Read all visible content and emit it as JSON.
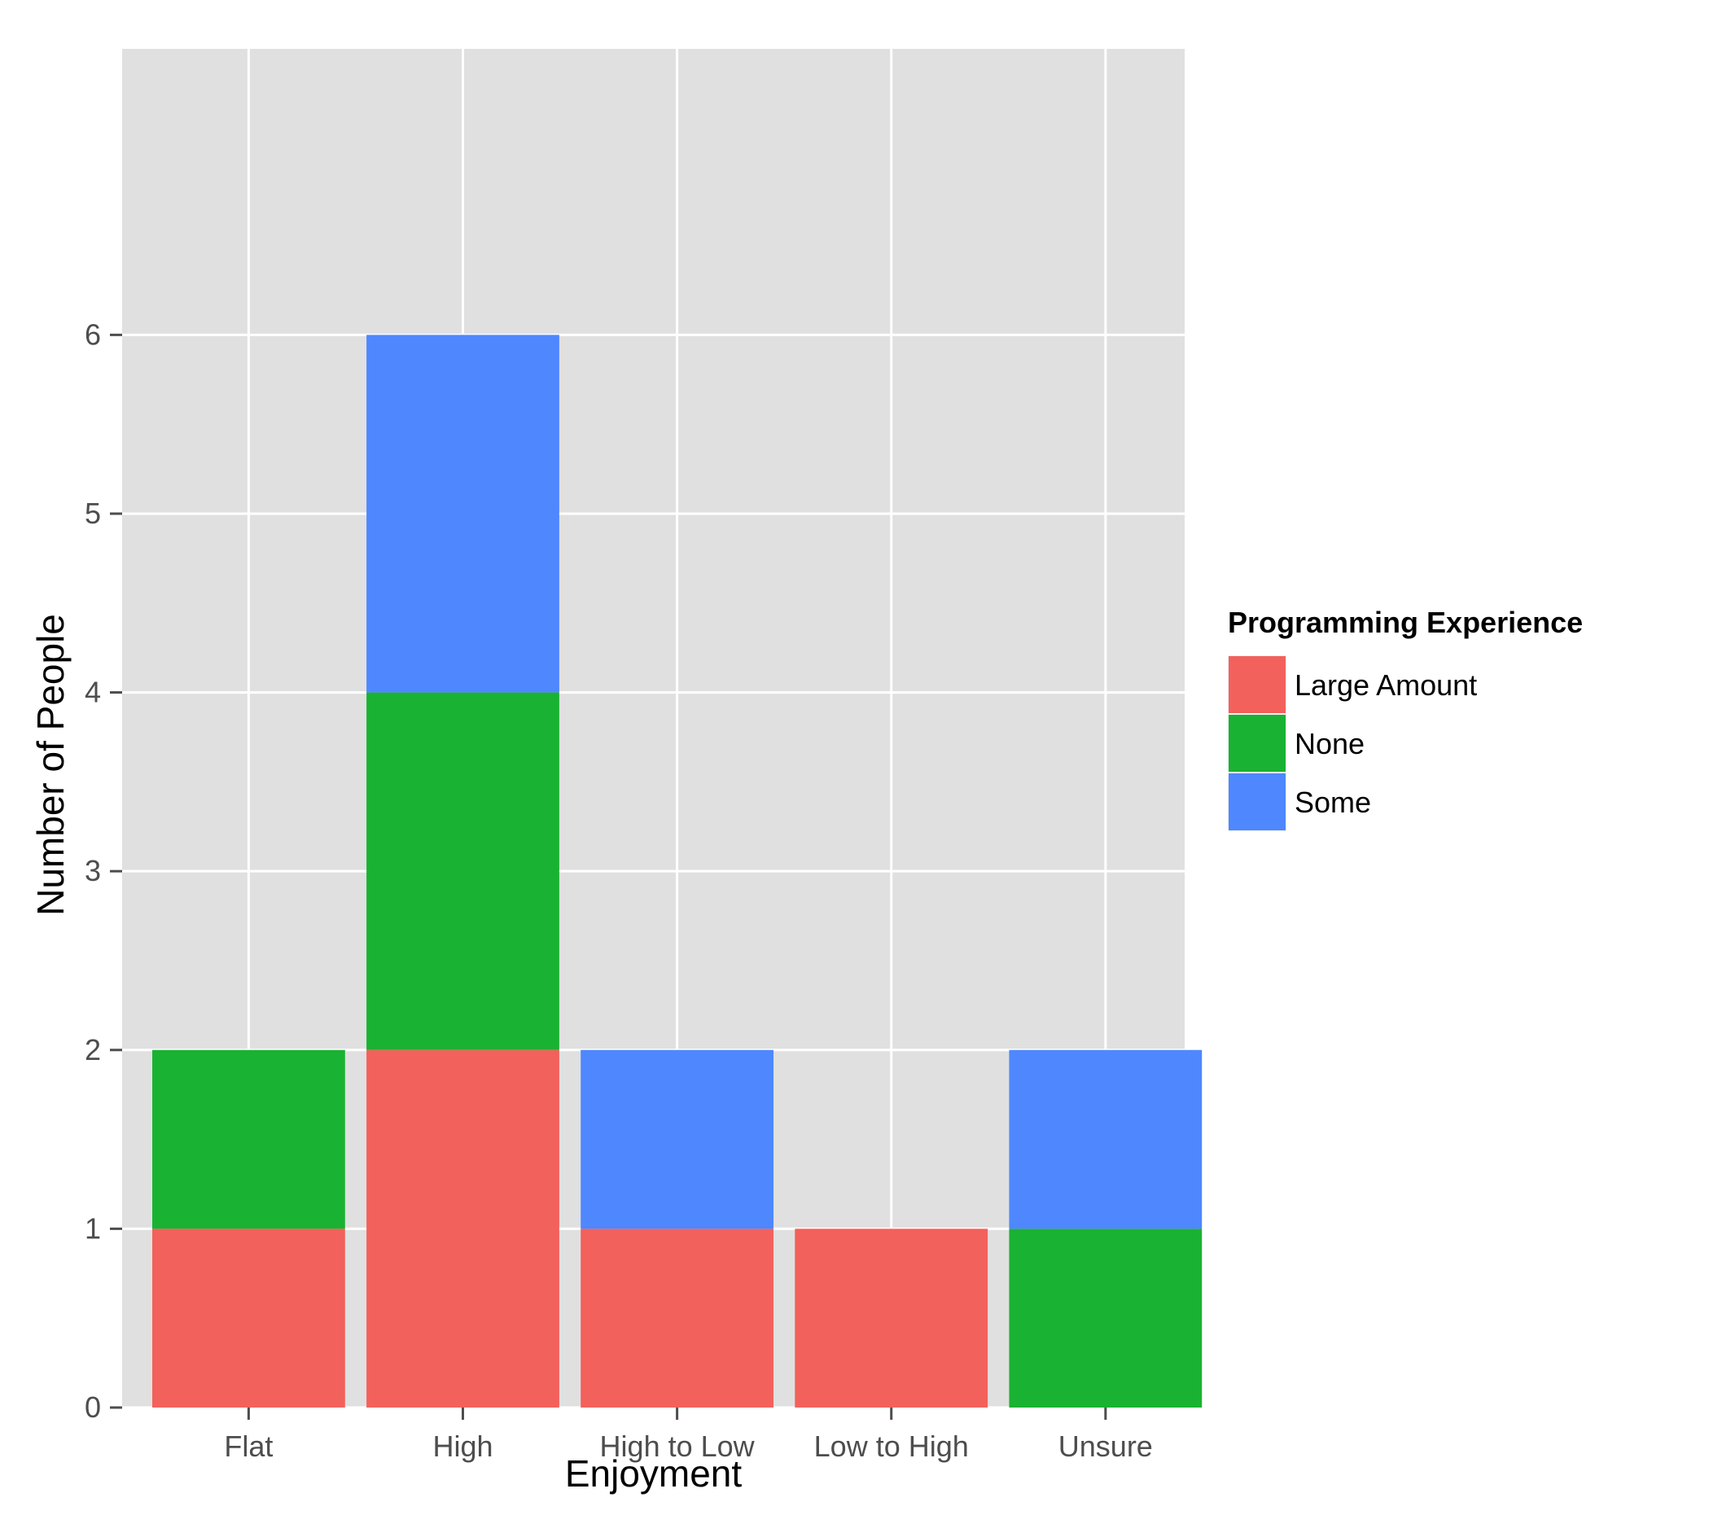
{
  "chart_data": {
    "type": "bar",
    "stacked": true,
    "xlabel": "Enjoyment",
    "ylabel": "Number of People",
    "categories": [
      "Flat",
      "High",
      "High to Low",
      "Low to High",
      "Unsure"
    ],
    "series": [
      {
        "name": "Large Amount",
        "color": "#F2615C",
        "values": [
          1,
          2,
          1,
          1,
          0
        ]
      },
      {
        "name": "None",
        "color": "#1AB232",
        "values": [
          1,
          2,
          0,
          0,
          1
        ]
      },
      {
        "name": "Some",
        "color": "#4F87FF",
        "values": [
          0,
          2,
          1,
          0,
          1
        ]
      }
    ],
    "ylim": [
      0,
      6
    ],
    "yticks": [
      0,
      1,
      2,
      3,
      4,
      5,
      6
    ],
    "grid": true,
    "panel_background": "#E0E0E0",
    "legend": {
      "title": "Programming Experience",
      "placement": "right"
    }
  }
}
